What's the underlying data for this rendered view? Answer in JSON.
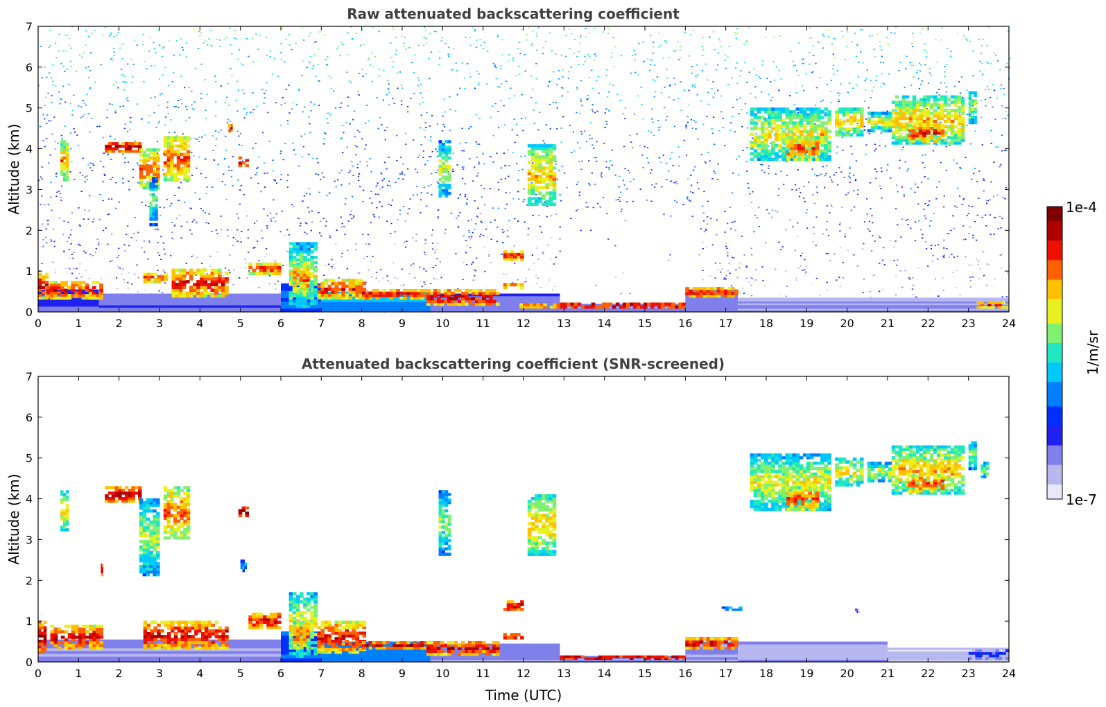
{
  "chart_data": [
    {
      "type": "heatmap",
      "title": "Raw attenuated backscattering coefficient",
      "xlabel": "",
      "ylabel": "Altitude (km)",
      "xlim": [
        0,
        24
      ],
      "ylim": [
        0,
        7
      ],
      "xticks": [
        "0",
        "1",
        "2",
        "3",
        "4",
        "5",
        "6",
        "7",
        "8",
        "9",
        "10",
        "11",
        "12",
        "13",
        "14",
        "15",
        "16",
        "17",
        "18",
        "19",
        "20",
        "21",
        "22",
        "23",
        "24"
      ],
      "yticks": [
        "0",
        "1",
        "2",
        "3",
        "4",
        "5",
        "6",
        "7"
      ],
      "noise": {
        "description_free_params": true,
        "profile": [
          {
            "y": 7.0,
            "level": 0.52
          },
          {
            "y": 5.5,
            "level": 0.4
          },
          {
            "y": 3.5,
            "level": 0.3
          },
          {
            "y": 2.0,
            "level": 0.22
          },
          {
            "y": 1.0,
            "level": 0.14
          },
          {
            "y": 0.0,
            "level": 0.08
          }
        ],
        "clear_gap": {
          "x0": 12.9,
          "x1": 16.3,
          "ytop": 2.3
        }
      },
      "boundary_layer": [
        {
          "x0": 0.0,
          "x1": 1.5,
          "top": 0.55,
          "level": 0.18
        },
        {
          "x0": 1.5,
          "x1": 6.0,
          "top": 0.45,
          "level": 0.14
        },
        {
          "x0": 6.0,
          "x1": 7.0,
          "top": 0.7,
          "level": 0.32
        },
        {
          "x0": 7.0,
          "x1": 9.7,
          "top": 0.5,
          "level": 0.38
        },
        {
          "x0": 9.7,
          "x1": 12.9,
          "top": 0.45,
          "level": 0.15
        },
        {
          "x0": 12.9,
          "x1": 16.0,
          "top": 0.2,
          "level": 0.12
        },
        {
          "x0": 16.0,
          "x1": 17.3,
          "top": 0.55,
          "level": 0.15
        },
        {
          "x0": 17.3,
          "x1": 24.0,
          "top": 0.35,
          "level": 0.1
        }
      ],
      "layers": [
        {
          "x0": 0.0,
          "x1": 0.25,
          "y0": 0.3,
          "y1": 0.95,
          "level": 0.9
        },
        {
          "x0": 0.2,
          "x1": 1.6,
          "y0": 0.3,
          "y1": 0.75,
          "level": 0.88
        },
        {
          "x0": 0.55,
          "x1": 0.75,
          "y0": 3.2,
          "y1": 4.2,
          "level": 0.75
        },
        {
          "x0": 1.65,
          "x1": 2.55,
          "y0": 3.9,
          "y1": 4.15,
          "level": 0.97
        },
        {
          "x0": 2.5,
          "x1": 3.0,
          "y0": 3.0,
          "y1": 4.0,
          "level": 0.8
        },
        {
          "x0": 2.75,
          "x1": 2.95,
          "y0": 2.1,
          "y1": 3.3,
          "level": 0.55
        },
        {
          "x0": 3.1,
          "x1": 3.75,
          "y0": 3.2,
          "y1": 4.3,
          "level": 0.82
        },
        {
          "x0": 2.6,
          "x1": 3.2,
          "y0": 0.7,
          "y1": 0.95,
          "level": 0.85
        },
        {
          "x0": 3.3,
          "x1": 4.7,
          "y0": 0.35,
          "y1": 1.05,
          "level": 0.88
        },
        {
          "x0": 4.95,
          "x1": 5.2,
          "y0": 3.55,
          "y1": 3.8,
          "level": 0.95
        },
        {
          "x0": 4.7,
          "x1": 4.8,
          "y0": 4.4,
          "y1": 4.6,
          "level": 0.9
        },
        {
          "x0": 5.2,
          "x1": 6.0,
          "y0": 0.9,
          "y1": 1.2,
          "level": 0.85
        },
        {
          "x0": 6.2,
          "x1": 6.9,
          "y0": 0.1,
          "y1": 1.7,
          "level": 0.65
        },
        {
          "x0": 6.3,
          "x1": 6.7,
          "y0": 0.4,
          "y1": 1.2,
          "level": 0.8
        },
        {
          "x0": 6.9,
          "x1": 8.1,
          "y0": 0.3,
          "y1": 0.8,
          "level": 0.85
        },
        {
          "x0": 8.0,
          "x1": 9.7,
          "y0": 0.3,
          "y1": 0.55,
          "level": 0.9
        },
        {
          "x0": 9.6,
          "x1": 11.4,
          "y0": 0.15,
          "y1": 0.55,
          "level": 0.92
        },
        {
          "x0": 9.9,
          "x1": 10.2,
          "y0": 2.8,
          "y1": 4.2,
          "level": 0.62
        },
        {
          "x0": 11.5,
          "x1": 12.0,
          "y0": 1.25,
          "y1": 1.5,
          "level": 0.88
        },
        {
          "x0": 11.5,
          "x1": 12.0,
          "y0": 0.55,
          "y1": 0.7,
          "level": 0.85
        },
        {
          "x0": 12.1,
          "x1": 12.8,
          "y0": 2.6,
          "y1": 4.1,
          "level": 0.72
        },
        {
          "x0": 11.9,
          "x1": 12.9,
          "y0": 0.08,
          "y1": 0.2,
          "level": 0.85
        },
        {
          "x0": 12.9,
          "x1": 16.0,
          "y0": 0.08,
          "y1": 0.22,
          "level": 0.97
        },
        {
          "x0": 16.0,
          "x1": 17.3,
          "y0": 0.35,
          "y1": 0.6,
          "level": 0.88
        },
        {
          "x0": 17.6,
          "x1": 19.6,
          "y0": 3.7,
          "y1": 5.0,
          "level": 0.68
        },
        {
          "x0": 18.5,
          "x1": 19.3,
          "y0": 3.7,
          "y1": 4.3,
          "level": 0.82
        },
        {
          "x0": 19.7,
          "x1": 20.4,
          "y0": 4.3,
          "y1": 5.0,
          "level": 0.72
        },
        {
          "x0": 20.5,
          "x1": 21.1,
          "y0": 4.4,
          "y1": 4.9,
          "level": 0.65
        },
        {
          "x0": 21.1,
          "x1": 22.9,
          "y0": 4.1,
          "y1": 5.3,
          "level": 0.72
        },
        {
          "x0": 21.5,
          "x1": 22.4,
          "y0": 4.15,
          "y1": 4.6,
          "level": 0.85
        },
        {
          "x0": 23.0,
          "x1": 23.2,
          "y0": 4.6,
          "y1": 5.4,
          "level": 0.62
        },
        {
          "x0": 23.2,
          "x1": 24.0,
          "y0": 0.08,
          "y1": 0.25,
          "level": 0.85
        }
      ]
    },
    {
      "type": "heatmap",
      "title": "Attenuated backscattering coefficient (SNR-screened)",
      "xlabel": "Time (UTC)",
      "ylabel": "Altitude (km)",
      "xlim": [
        0,
        24
      ],
      "ylim": [
        0,
        7
      ],
      "xticks": [
        "0",
        "1",
        "2",
        "3",
        "4",
        "5",
        "6",
        "7",
        "8",
        "9",
        "10",
        "11",
        "12",
        "13",
        "14",
        "15",
        "16",
        "17",
        "18",
        "19",
        "20",
        "21",
        "22",
        "23",
        "24"
      ],
      "yticks": [
        "0",
        "1",
        "2",
        "3",
        "4",
        "5",
        "6",
        "7"
      ],
      "boundary_layer": [
        {
          "x0": 0.0,
          "x1": 6.0,
          "top": 0.55,
          "level": 0.14
        },
        {
          "x0": 6.0,
          "x1": 7.0,
          "top": 0.75,
          "level": 0.33
        },
        {
          "x0": 7.0,
          "x1": 9.7,
          "top": 0.5,
          "level": 0.36
        },
        {
          "x0": 9.7,
          "x1": 12.9,
          "top": 0.45,
          "level": 0.14
        },
        {
          "x0": 12.9,
          "x1": 16.0,
          "top": 0.15,
          "level": 0.12
        },
        {
          "x0": 16.0,
          "x1": 17.3,
          "top": 0.5,
          "level": 0.14
        },
        {
          "x0": 17.3,
          "x1": 21.0,
          "top": 0.5,
          "level": 0.1
        },
        {
          "x0": 21.0,
          "x1": 24.0,
          "top": 0.35,
          "level": 0.06
        }
      ],
      "layers": [
        {
          "x0": 0.0,
          "x1": 0.2,
          "y0": 0.2,
          "y1": 1.0,
          "level": 0.95
        },
        {
          "x0": 0.3,
          "x1": 1.6,
          "y0": 0.3,
          "y1": 0.9,
          "level": 0.9
        },
        {
          "x0": 0.55,
          "x1": 0.75,
          "y0": 3.2,
          "y1": 4.2,
          "level": 0.7
        },
        {
          "x0": 1.65,
          "x1": 2.55,
          "y0": 3.9,
          "y1": 4.3,
          "level": 0.95
        },
        {
          "x0": 2.5,
          "x1": 3.0,
          "y0": 2.1,
          "y1": 4.0,
          "level": 0.62
        },
        {
          "x0": 3.1,
          "x1": 3.75,
          "y0": 3.0,
          "y1": 4.3,
          "level": 0.8
        },
        {
          "x0": 1.55,
          "x1": 1.6,
          "y0": 2.1,
          "y1": 2.4,
          "level": 0.99
        },
        {
          "x0": 2.6,
          "x1": 4.7,
          "y0": 0.3,
          "y1": 1.0,
          "level": 0.9
        },
        {
          "x0": 4.95,
          "x1": 5.2,
          "y0": 3.55,
          "y1": 3.8,
          "level": 0.98
        },
        {
          "x0": 5.2,
          "x1": 6.0,
          "y0": 0.8,
          "y1": 1.2,
          "level": 0.9
        },
        {
          "x0": 5.0,
          "x1": 5.15,
          "y0": 2.2,
          "y1": 2.5,
          "level": 0.45
        },
        {
          "x0": 6.2,
          "x1": 6.9,
          "y0": 0.1,
          "y1": 1.7,
          "level": 0.68
        },
        {
          "x0": 6.3,
          "x1": 6.7,
          "y0": 0.3,
          "y1": 1.0,
          "level": 0.82
        },
        {
          "x0": 6.9,
          "x1": 8.1,
          "y0": 0.2,
          "y1": 1.0,
          "level": 0.88
        },
        {
          "x0": 8.0,
          "x1": 9.7,
          "y0": 0.3,
          "y1": 0.5,
          "level": 0.92
        },
        {
          "x0": 9.6,
          "x1": 11.4,
          "y0": 0.15,
          "y1": 0.5,
          "level": 0.92
        },
        {
          "x0": 9.9,
          "x1": 10.2,
          "y0": 2.6,
          "y1": 4.2,
          "level": 0.6
        },
        {
          "x0": 11.5,
          "x1": 12.0,
          "y0": 1.25,
          "y1": 1.5,
          "level": 0.95
        },
        {
          "x0": 11.5,
          "x1": 12.0,
          "y0": 0.55,
          "y1": 0.7,
          "level": 0.95
        },
        {
          "x0": 12.1,
          "x1": 12.8,
          "y0": 2.6,
          "y1": 4.1,
          "level": 0.72
        },
        {
          "x0": 12.9,
          "x1": 16.0,
          "y0": 0.05,
          "y1": 0.15,
          "level": 0.99
        },
        {
          "x0": 16.0,
          "x1": 17.3,
          "y0": 0.3,
          "y1": 0.6,
          "level": 0.92
        },
        {
          "x0": 16.9,
          "x1": 17.4,
          "y0": 1.25,
          "y1": 1.35,
          "level": 0.5
        },
        {
          "x0": 17.6,
          "x1": 19.6,
          "y0": 3.7,
          "y1": 5.1,
          "level": 0.66
        },
        {
          "x0": 18.5,
          "x1": 19.3,
          "y0": 3.7,
          "y1": 4.3,
          "level": 0.82
        },
        {
          "x0": 19.7,
          "x1": 20.4,
          "y0": 4.3,
          "y1": 5.0,
          "level": 0.68
        },
        {
          "x0": 20.2,
          "x1": 20.3,
          "y0": 1.2,
          "y1": 1.3,
          "level": 0.3
        },
        {
          "x0": 20.5,
          "x1": 21.1,
          "y0": 4.4,
          "y1": 4.9,
          "level": 0.62
        },
        {
          "x0": 21.1,
          "x1": 22.9,
          "y0": 4.1,
          "y1": 5.3,
          "level": 0.72
        },
        {
          "x0": 21.5,
          "x1": 22.4,
          "y0": 4.15,
          "y1": 4.6,
          "level": 0.85
        },
        {
          "x0": 23.0,
          "x1": 23.2,
          "y0": 4.7,
          "y1": 5.4,
          "level": 0.6
        },
        {
          "x0": 23.3,
          "x1": 23.5,
          "y0": 4.5,
          "y1": 4.9,
          "level": 0.6
        },
        {
          "x0": 23.0,
          "x1": 24.0,
          "y0": 0.05,
          "y1": 0.3,
          "level": 0.3
        }
      ]
    }
  ],
  "colorbar": {
    "label": "1/m/sr",
    "min_label": "1e-7",
    "max_label": "1e-4",
    "colors": [
      "#e8e8f8",
      "#b8b8f0",
      "#8080ec",
      "#2020f0",
      "#0030ff",
      "#0080ff",
      "#00c8ff",
      "#20e8c0",
      "#80f070",
      "#e8f020",
      "#ffc000",
      "#ff6000",
      "#f01000",
      "#b00000",
      "#800000"
    ]
  }
}
